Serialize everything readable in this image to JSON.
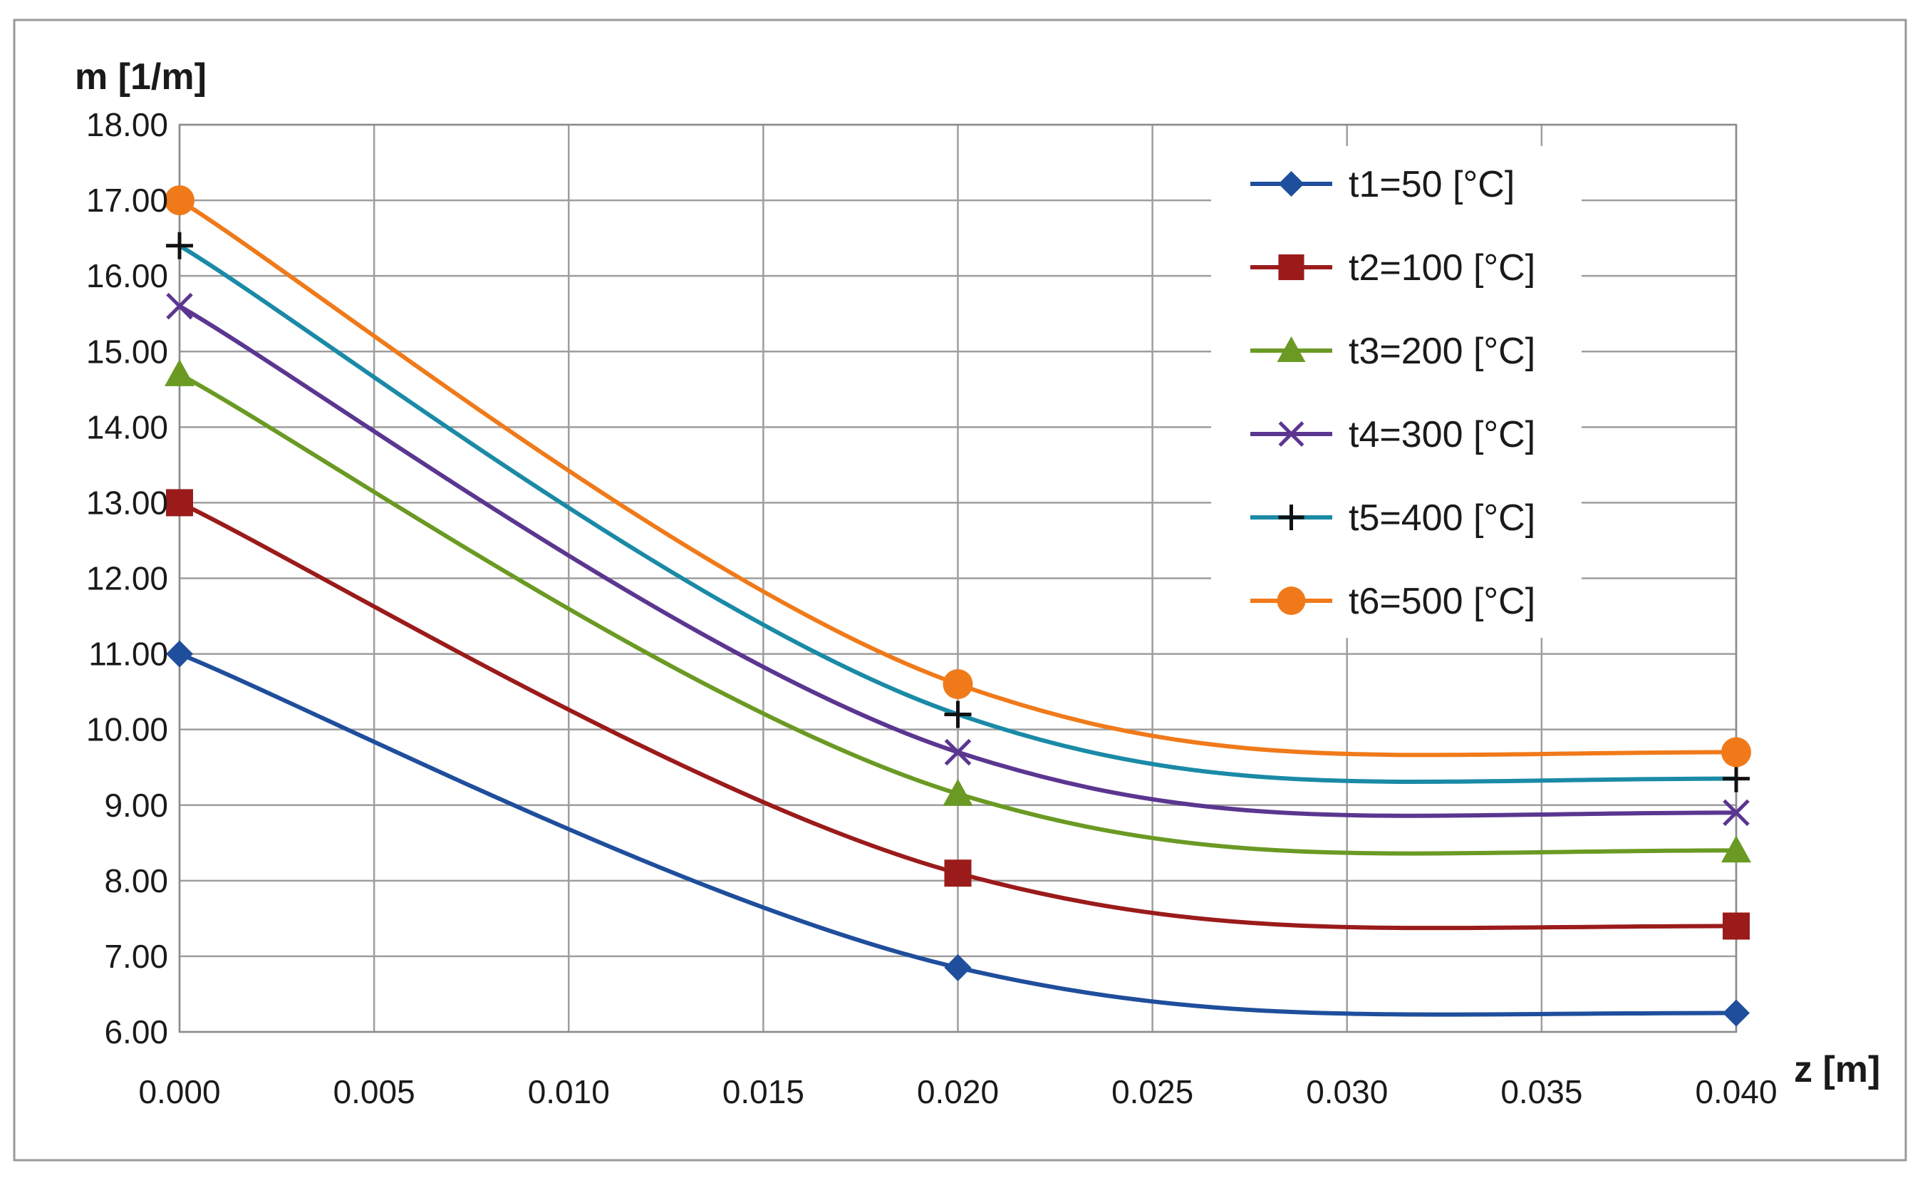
{
  "chart_data": {
    "type": "line",
    "title": "",
    "xlabel": "z [m]",
    "ylabel": "m [1/m]",
    "xlim": [
      0.0,
      0.04
    ],
    "ylim": [
      6.0,
      18.0
    ],
    "grid": true,
    "legend_position": "top-right",
    "x": [
      0.0,
      0.02,
      0.04
    ],
    "x_ticks": [
      0.0,
      0.005,
      0.01,
      0.015,
      0.02,
      0.025,
      0.03,
      0.035,
      0.04
    ],
    "x_tick_labels": [
      "0.000",
      "0.005",
      "0.010",
      "0.015",
      "0.020",
      "0.025",
      "0.030",
      "0.035",
      "0.040"
    ],
    "y_ticks": [
      6,
      7,
      8,
      9,
      10,
      11,
      12,
      13,
      14,
      15,
      16,
      17,
      18
    ],
    "y_tick_labels": [
      "6.00",
      "7.00",
      "8.00",
      "9.00",
      "10.00",
      "11.00",
      "12.00",
      "13.00",
      "14.00",
      "15.00",
      "16.00",
      "17.00",
      "18.00"
    ],
    "series": [
      {
        "name": "t1=50 [°C]",
        "values": [
          11.0,
          6.85,
          6.25
        ],
        "color": "#1f4e9c",
        "marker": "diamond"
      },
      {
        "name": "t2=100 [°C]",
        "values": [
          13.0,
          8.1,
          7.4
        ],
        "color": "#9b1b1b",
        "marker": "square"
      },
      {
        "name": "t3=200 [°C]",
        "values": [
          14.7,
          9.15,
          8.4
        ],
        "color": "#6a9a23",
        "marker": "triangle"
      },
      {
        "name": "t4=300 [°C]",
        "values": [
          15.6,
          9.7,
          8.9
        ],
        "color": "#5b3690",
        "marker": "x"
      },
      {
        "name": "t5=400 [°C]",
        "values": [
          16.4,
          10.2,
          9.35
        ],
        "color": "#1a8aa6",
        "marker": "plus"
      },
      {
        "name": "t6=500 [°C]",
        "values": [
          17.0,
          10.6,
          9.7
        ],
        "color": "#f07a1a",
        "marker": "circle"
      }
    ]
  }
}
